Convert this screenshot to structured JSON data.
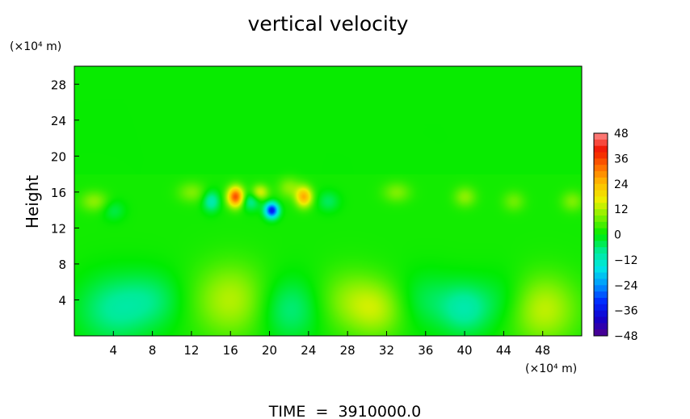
{
  "chart_data": {
    "type": "heatmap",
    "title": "vertical velocity",
    "ylabel": "Height",
    "y_unit": "(×10⁴ m)",
    "x_unit": "(×10⁴ m)",
    "footer": "TIME  =  3910000.0",
    "xlim": [
      0,
      52
    ],
    "ylim": [
      0,
      30
    ],
    "x_ticks": [
      4,
      8,
      12,
      16,
      20,
      24,
      28,
      32,
      36,
      40,
      44,
      48
    ],
    "y_ticks": [
      4,
      8,
      12,
      16,
      20,
      24,
      28
    ],
    "colorbar": {
      "min": -48,
      "max": 48,
      "labels": [
        48,
        36,
        24,
        12,
        0,
        -12,
        -24,
        -36,
        -48
      ],
      "label_text": [
        "48",
        "36",
        "24",
        "12",
        "0",
        "−12",
        "−24",
        "−36",
        "−48"
      ]
    },
    "field": {
      "background": 3,
      "features": [
        {
          "x": 4,
          "y": 3,
          "sx": 2.6,
          "sy": 2.6,
          "value": -9
        },
        {
          "x": 8,
          "y": 4,
          "sx": 2.2,
          "sy": 2.2,
          "value": -6
        },
        {
          "x": 16,
          "y": 4,
          "sx": 2.6,
          "sy": 2.8,
          "value": 11
        },
        {
          "x": 22,
          "y": 3,
          "sx": 2.2,
          "sy": 2.4,
          "value": -8
        },
        {
          "x": 28,
          "y": 4,
          "sx": 2.2,
          "sy": 2.4,
          "value": 7
        },
        {
          "x": 31,
          "y": 3,
          "sx": 2.0,
          "sy": 2.2,
          "value": 10
        },
        {
          "x": 36,
          "y": 4,
          "sx": 2.2,
          "sy": 2.2,
          "value": -5
        },
        {
          "x": 40,
          "y": 3,
          "sx": 1.8,
          "sy": 2.0,
          "value": -10
        },
        {
          "x": 44,
          "y": 4,
          "sx": 2.0,
          "sy": 2.2,
          "value": -4
        },
        {
          "x": 48,
          "y": 3,
          "sx": 2.4,
          "sy": 2.6,
          "value": 12
        },
        {
          "x": 2,
          "y": 15,
          "sx": 1.0,
          "sy": 0.8,
          "value": 8
        },
        {
          "x": 4,
          "y": 14,
          "sx": 0.8,
          "sy": 0.8,
          "value": -5
        },
        {
          "x": 12,
          "y": 16,
          "sx": 1.0,
          "sy": 0.8,
          "value": 7
        },
        {
          "x": 14,
          "y": 15,
          "sx": 0.6,
          "sy": 0.8,
          "value": -12
        },
        {
          "x": 16.5,
          "y": 15.5,
          "sx": 0.6,
          "sy": 0.8,
          "value": 34
        },
        {
          "x": 18,
          "y": 15,
          "sx": 0.7,
          "sy": 0.7,
          "value": -10
        },
        {
          "x": 20.2,
          "y": 14,
          "sx": 0.5,
          "sy": 0.6,
          "value": -36
        },
        {
          "x": 19,
          "y": 16,
          "sx": 0.6,
          "sy": 0.6,
          "value": 14
        },
        {
          "x": 23.5,
          "y": 15.5,
          "sx": 0.6,
          "sy": 0.8,
          "value": 24
        },
        {
          "x": 22,
          "y": 16.5,
          "sx": 0.8,
          "sy": 0.8,
          "value": 8
        },
        {
          "x": 26,
          "y": 15,
          "sx": 0.8,
          "sy": 0.8,
          "value": -6
        },
        {
          "x": 33,
          "y": 16,
          "sx": 1.0,
          "sy": 0.8,
          "value": 7
        },
        {
          "x": 40,
          "y": 15.5,
          "sx": 0.8,
          "sy": 0.8,
          "value": 8
        },
        {
          "x": 45,
          "y": 15,
          "sx": 0.8,
          "sy": 0.8,
          "value": 6
        },
        {
          "x": 51,
          "y": 15,
          "sx": 0.8,
          "sy": 0.8,
          "value": 7
        }
      ]
    }
  }
}
